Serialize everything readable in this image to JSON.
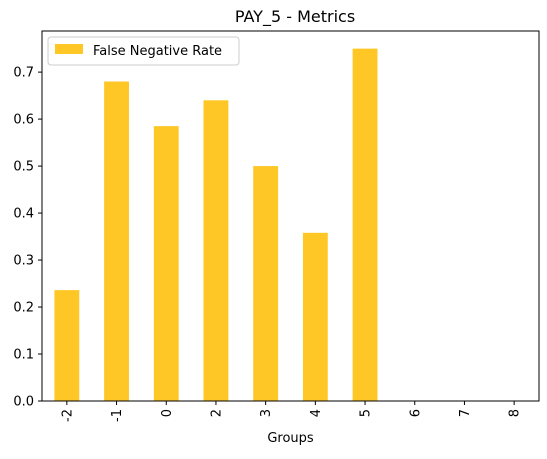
{
  "chart_data": {
    "type": "bar",
    "title": "PAY_5 - Metrics",
    "xlabel": "Groups",
    "ylabel": "",
    "categories": [
      "-2",
      "-1",
      "0",
      "2",
      "3",
      "4",
      "5",
      "6",
      "7",
      "8"
    ],
    "series": [
      {
        "name": "False Negative Rate",
        "values": [
          0.236,
          0.68,
          0.585,
          0.64,
          0.5,
          0.358,
          0.75,
          0,
          0,
          0
        ]
      }
    ],
    "ylim": [
      0,
      0.7875
    ],
    "yticks": [
      0.0,
      0.1,
      0.2,
      0.3,
      0.4,
      0.5,
      0.6,
      0.7
    ],
    "ytick_labels": [
      "0.0",
      "0.1",
      "0.2",
      "0.3",
      "0.4",
      "0.5",
      "0.6",
      "0.7"
    ],
    "grid": false,
    "legend_position": "top-left",
    "colors": {
      "bar": "#fec726",
      "axis": "#000000",
      "background": "#ffffff",
      "legend_border": "#cccccc"
    }
  }
}
